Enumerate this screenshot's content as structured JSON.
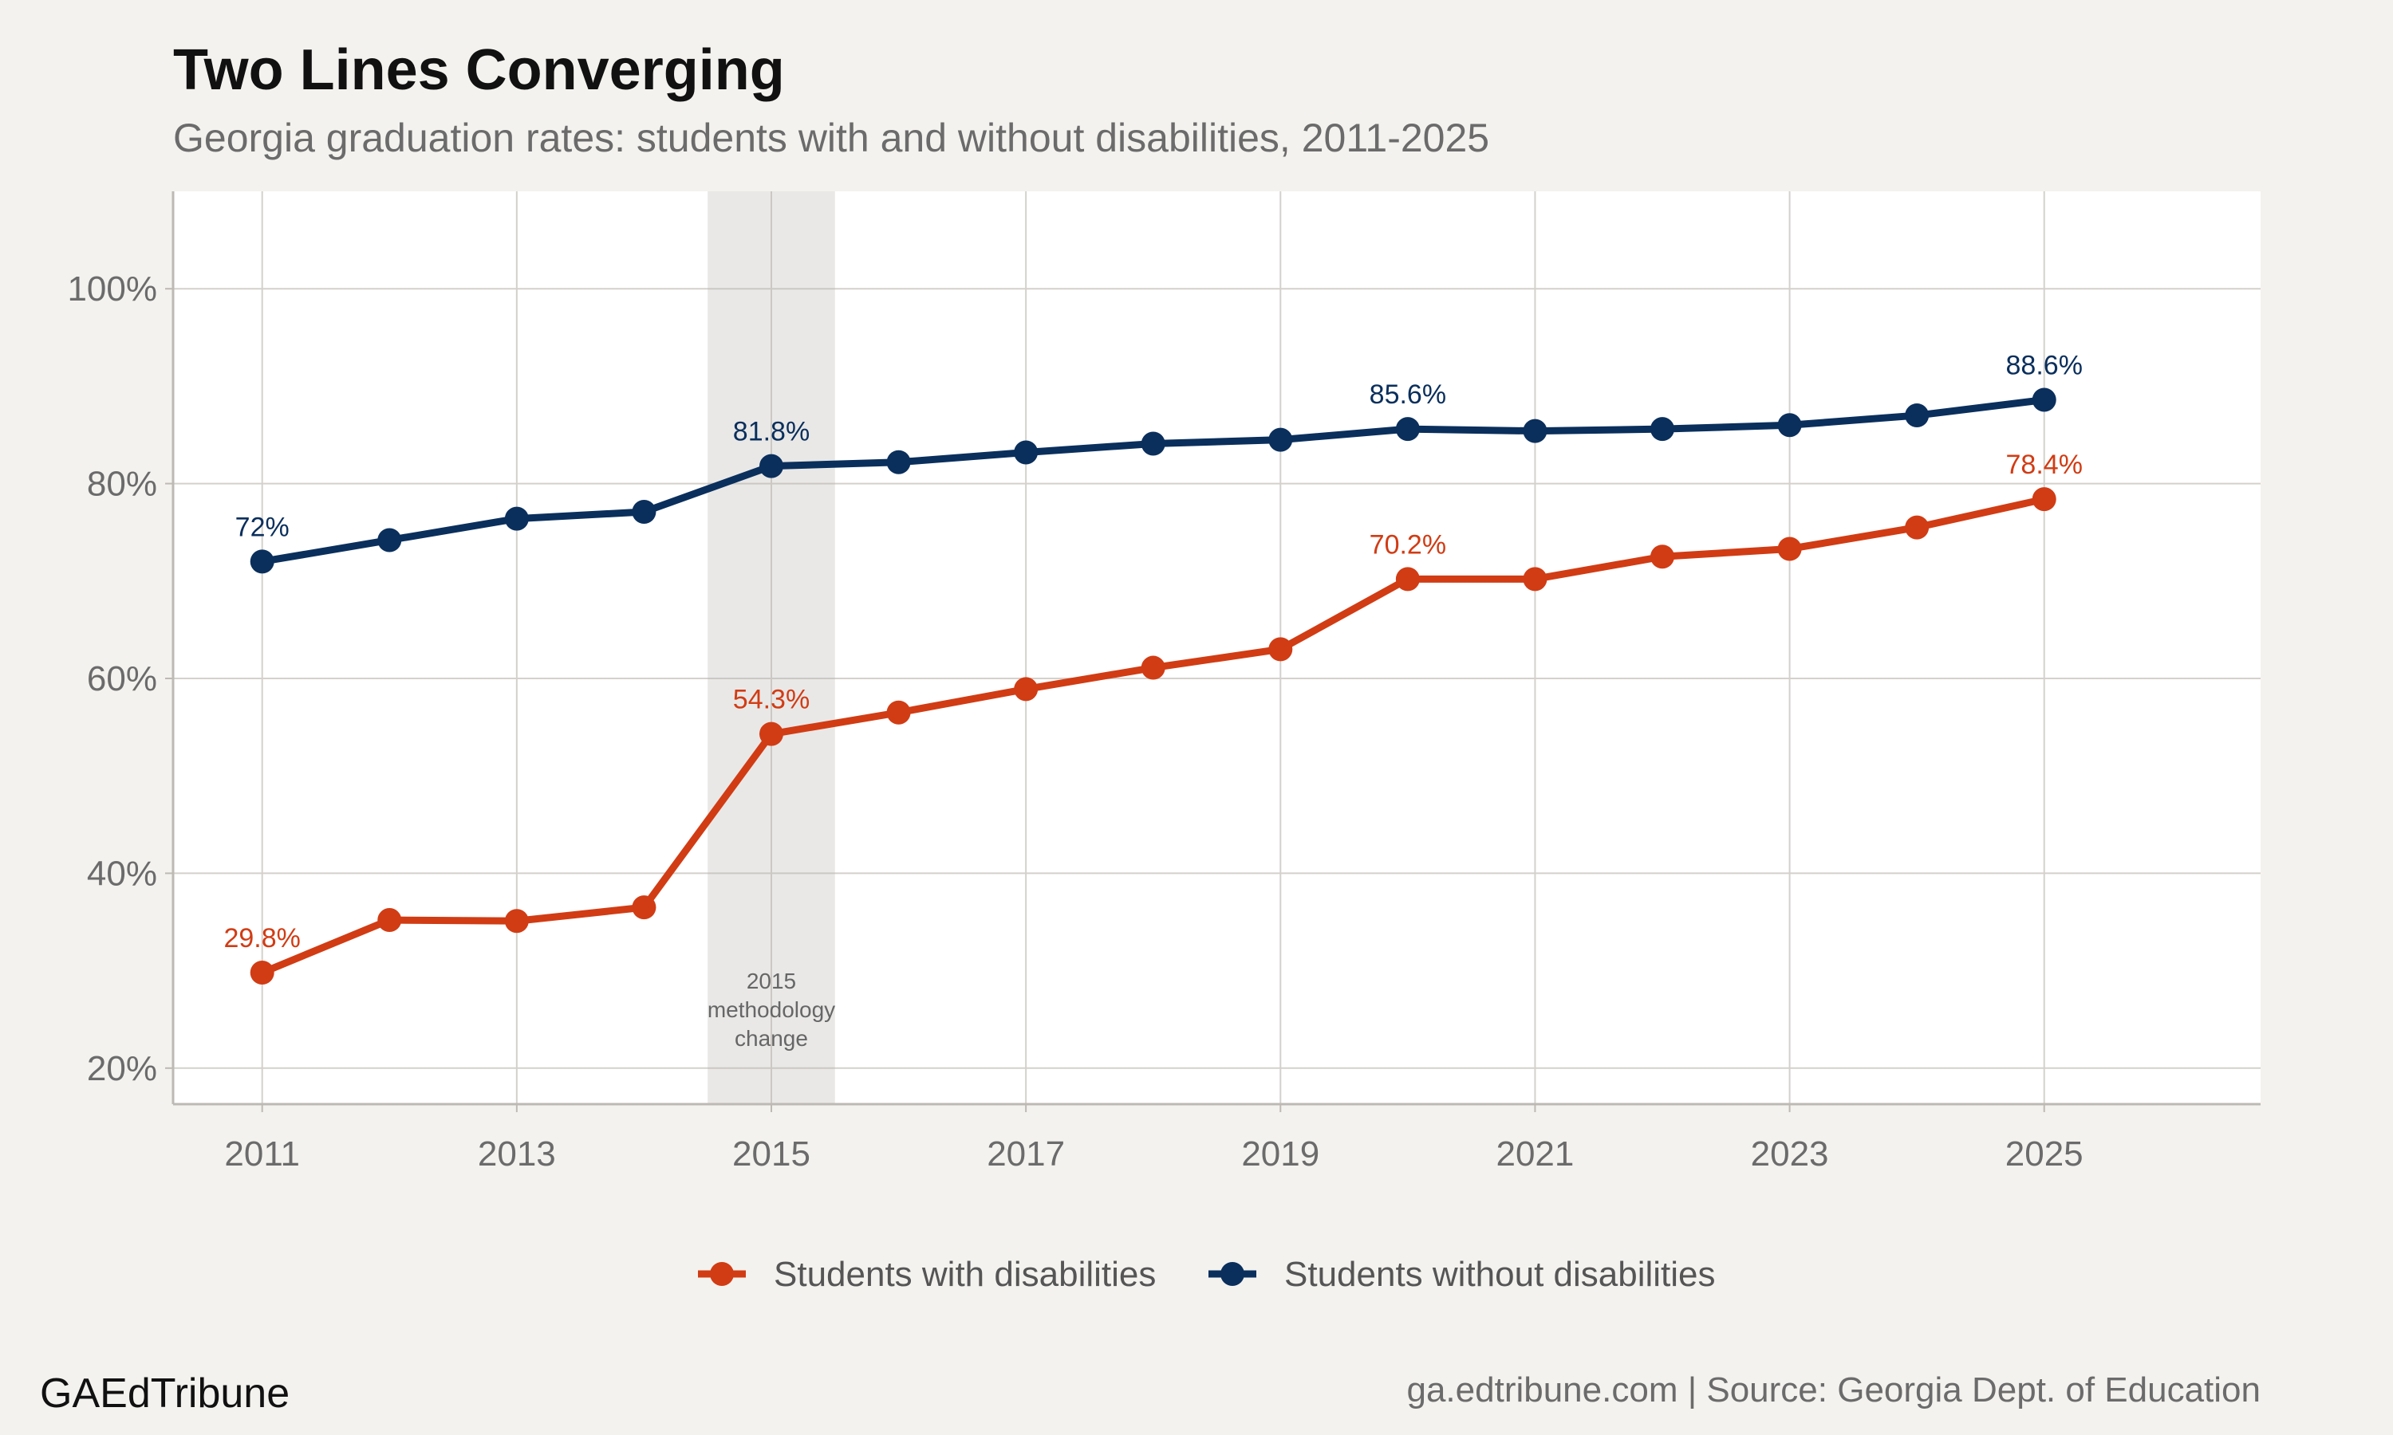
{
  "title": "Two Lines Converging",
  "subtitle": "Georgia graduation rates: students with and without disabilities, 2011-2025",
  "footer": {
    "brand": "GAEdTribune",
    "source": "ga.edtribune.com | Source: Georgia Dept. of Education"
  },
  "chart_data": {
    "type": "line",
    "title": "Two Lines Converging",
    "subtitle": "Georgia graduation rates: students with and without disabilities, 2011-2025",
    "x": [
      2011,
      2012,
      2013,
      2014,
      2015,
      2016,
      2017,
      2018,
      2019,
      2020,
      2021,
      2022,
      2023,
      2024,
      2025
    ],
    "x_ticks": [
      2011,
      2013,
      2015,
      2017,
      2019,
      2021,
      2023,
      2025
    ],
    "x_tick_labels": [
      "2011",
      "2013",
      "2015",
      "2017",
      "2019",
      "2021",
      "2023",
      "2025"
    ],
    "xlim": [
      2010.3,
      2026.7
    ],
    "y_ticks": [
      20,
      40,
      60,
      80,
      100
    ],
    "y_tick_labels": [
      "20%",
      "40%",
      "60%",
      "80%",
      "100%"
    ],
    "ylim": [
      16.3,
      110
    ],
    "grid": true,
    "legend_position": "bottom",
    "xlabel": "",
    "ylabel": "",
    "highlight_band": {
      "x_from": 2014.5,
      "x_to": 2015.5,
      "label": [
        "2015",
        "methodology",
        "change"
      ]
    },
    "series": [
      {
        "name": "Students with disabilities",
        "color": "#d13c14",
        "values": [
          29.8,
          35.2,
          35.1,
          36.5,
          54.3,
          56.5,
          58.9,
          61.1,
          63.0,
          70.2,
          70.2,
          72.5,
          73.3,
          75.5,
          78.4
        ],
        "labels": [
          {
            "x": 2011,
            "text": "29.8%"
          },
          {
            "x": 2015,
            "text": "54.3%"
          },
          {
            "x": 2020,
            "text": "70.2%"
          },
          {
            "x": 2025,
            "text": "78.4%"
          }
        ]
      },
      {
        "name": "Students without disabilities",
        "color": "#0a2f5c",
        "values": [
          72.0,
          74.2,
          76.4,
          77.1,
          81.8,
          82.2,
          83.2,
          84.1,
          84.5,
          85.6,
          85.4,
          85.6,
          86.0,
          87.0,
          88.6
        ],
        "labels": [
          {
            "x": 2011,
            "text": "72%"
          },
          {
            "x": 2015,
            "text": "81.8%"
          },
          {
            "x": 2020,
            "text": "85.6%"
          },
          {
            "x": 2025,
            "text": "88.6%"
          }
        ]
      }
    ]
  }
}
